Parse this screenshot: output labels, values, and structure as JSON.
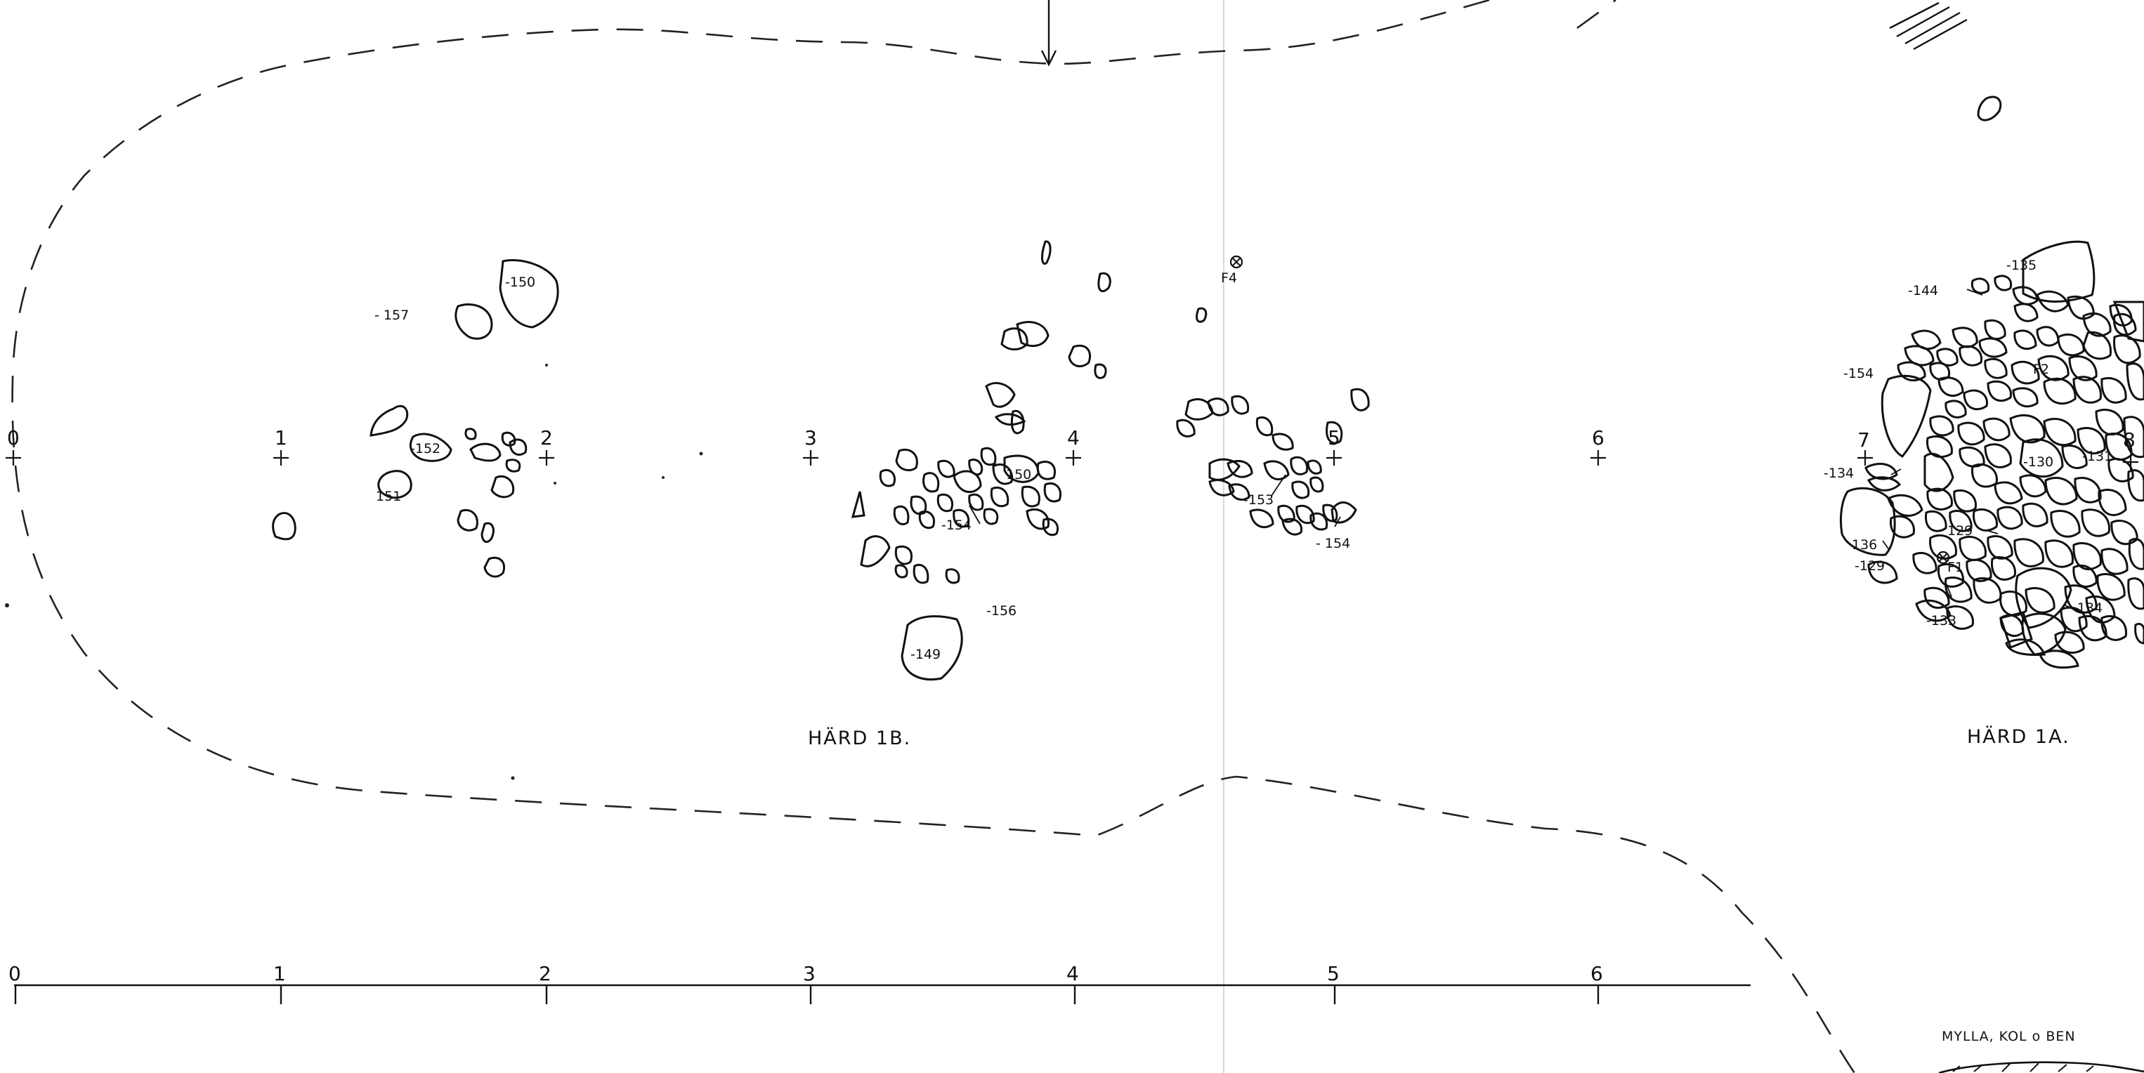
{
  "grid_points": [
    {
      "label": "0"
    },
    {
      "label": "1"
    },
    {
      "label": "2"
    },
    {
      "label": "3"
    },
    {
      "label": "4"
    },
    {
      "label": "5"
    },
    {
      "label": "6"
    },
    {
      "label": "7"
    },
    {
      "label": "8"
    }
  ],
  "scale_bar": {
    "ticks": [
      "0",
      "1",
      "2",
      "3",
      "4",
      "5",
      "6"
    ]
  },
  "hearths": {
    "b": "HÄRD 1B.",
    "a": "HÄRD 1A."
  },
  "levels": {
    "l157": "- 157",
    "l150a": "-150",
    "l152": "-152",
    "l151": "151",
    "l150b": "150",
    "l154a": "-154",
    "l156": "-156",
    "l149": "-149",
    "l153": "-153",
    "l154b": "- 154",
    "l135": "-135",
    "l144": "-144",
    "l154c": "-154",
    "l130": "-130",
    "l131": "-131",
    "l134a": "-134",
    "l129a": "129",
    "l136": "136",
    "l129b": "-129",
    "l133": "-133",
    "l134b": "-134"
  },
  "finds": {
    "f4": "F4",
    "f2": "F2",
    "f1": "F1"
  },
  "legend": {
    "label": "MYLLA, KOL o BEN"
  }
}
